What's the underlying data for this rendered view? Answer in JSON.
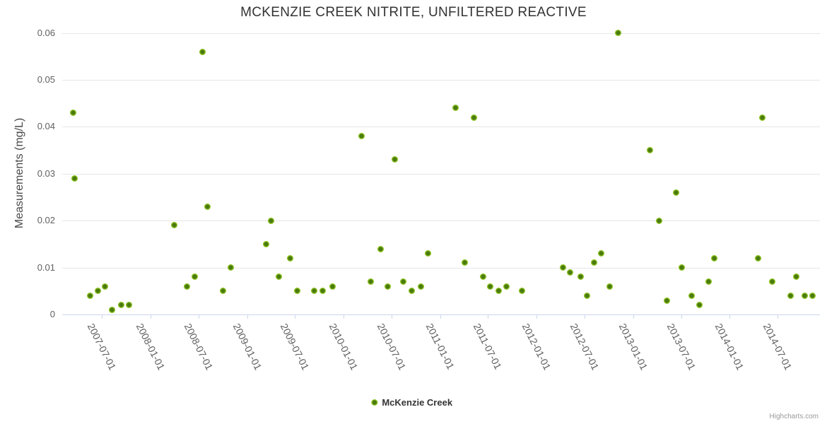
{
  "title": "MCKENZIE CREEK NITRITE, UNFILTERED REACTIVE",
  "legend": {
    "series_label": "McKenzie Creek"
  },
  "credit_label": "Highcharts.com",
  "colors": {
    "marker_outer": "#8bc11f",
    "marker_inner": "#4a7a0e",
    "title_text": "#333333",
    "axis_label_text": "#606060",
    "gridline": "#e6e6e6",
    "axis_line": "#ccd6eb"
  },
  "chart_data": {
    "type": "scatter",
    "title": "MCKENZIE CREEK NITRITE, UNFILTERED REACTIVE",
    "xlabel": "",
    "ylabel": "Measurements (mg/L)",
    "ylim": [
      0,
      0.06
    ],
    "ytick_interval": 0.01,
    "ytick_labels": [
      "0",
      "0.01",
      "0.02",
      "0.03",
      "0.04",
      "0.05",
      "0.06"
    ],
    "xtick_labels": [
      "2007-07-01",
      "2008-01-01",
      "2008-07-01",
      "2009-01-01",
      "2009-07-01",
      "2010-01-01",
      "2010-07-01",
      "2011-01-01",
      "2011-07-01",
      "2012-01-01",
      "2012-07-01",
      "2013-01-01",
      "2013-07-01",
      "2014-01-01",
      "2014-07-01"
    ],
    "grid": true,
    "legend_position": "bottom",
    "series": [
      {
        "name": "McKenzie Creek",
        "points": [
          [
            "2007-03-16",
            0.043
          ],
          [
            "2007-03-21",
            0.029
          ],
          [
            "2007-05-19",
            0.004
          ],
          [
            "2007-06-15",
            0.005
          ],
          [
            "2007-07-14",
            0.006
          ],
          [
            "2007-08-09",
            0.001
          ],
          [
            "2007-09-13",
            0.002
          ],
          [
            "2007-10-13",
            0.002
          ],
          [
            "2008-03-30",
            0.019
          ],
          [
            "2008-05-17",
            0.006
          ],
          [
            "2008-06-18",
            0.008
          ],
          [
            "2008-07-15",
            0.056
          ],
          [
            "2008-08-05",
            0.023
          ],
          [
            "2008-10-03",
            0.005
          ],
          [
            "2008-11-01",
            0.01
          ],
          [
            "2009-03-13",
            0.015
          ],
          [
            "2009-04-01",
            0.02
          ],
          [
            "2009-04-30",
            0.008
          ],
          [
            "2009-06-12",
            0.012
          ],
          [
            "2009-07-09",
            0.005
          ],
          [
            "2009-09-11",
            0.005
          ],
          [
            "2009-10-13",
            0.005
          ],
          [
            "2009-11-19",
            0.006
          ],
          [
            "2010-03-09",
            0.038
          ],
          [
            "2010-04-15",
            0.007
          ],
          [
            "2010-05-20",
            0.014
          ],
          [
            "2010-06-16",
            0.006
          ],
          [
            "2010-07-13",
            0.033
          ],
          [
            "2010-08-14",
            0.007
          ],
          [
            "2010-09-15",
            0.005
          ],
          [
            "2010-10-20",
            0.006
          ],
          [
            "2010-11-16",
            0.013
          ],
          [
            "2011-03-01",
            0.044
          ],
          [
            "2011-04-05",
            0.011
          ],
          [
            "2011-05-10",
            0.042
          ],
          [
            "2011-06-14",
            0.008
          ],
          [
            "2011-07-11",
            0.006
          ],
          [
            "2011-08-10",
            0.005
          ],
          [
            "2011-09-08",
            0.006
          ],
          [
            "2011-11-06",
            0.005
          ],
          [
            "2012-04-09",
            0.01
          ],
          [
            "2012-05-08",
            0.009
          ],
          [
            "2012-06-15",
            0.008
          ],
          [
            "2012-07-09",
            0.004
          ],
          [
            "2012-08-07",
            0.011
          ],
          [
            "2012-09-03",
            0.013
          ],
          [
            "2012-10-05",
            0.006
          ],
          [
            "2012-11-06",
            0.06
          ],
          [
            "2013-03-04",
            0.035
          ],
          [
            "2013-04-08",
            0.02
          ],
          [
            "2013-05-08",
            0.003
          ],
          [
            "2013-06-12",
            0.026
          ],
          [
            "2013-07-03",
            0.01
          ],
          [
            "2013-08-10",
            0.004
          ],
          [
            "2013-09-08",
            0.002
          ],
          [
            "2013-10-13",
            0.007
          ],
          [
            "2013-11-04",
            0.012
          ],
          [
            "2014-04-18",
            0.012
          ],
          [
            "2014-05-04",
            0.042
          ],
          [
            "2014-06-10",
            0.007
          ],
          [
            "2014-08-19",
            0.004
          ],
          [
            "2014-09-09",
            0.008
          ],
          [
            "2014-10-11",
            0.004
          ],
          [
            "2014-11-10",
            0.004
          ]
        ]
      }
    ]
  }
}
